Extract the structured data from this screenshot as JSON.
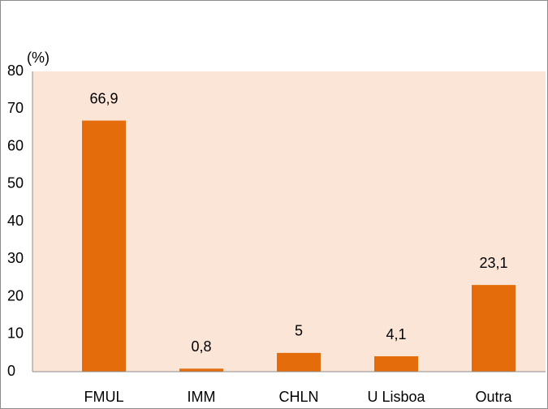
{
  "chart_data": {
    "type": "bar",
    "ylabel": "(%)",
    "categories": [
      "FMUL",
      "IMM",
      "CHLN",
      "U Lisboa",
      "Outra"
    ],
    "values": [
      66.9,
      0.8,
      5,
      4.1,
      23.1
    ],
    "value_labels": [
      "66,9",
      "0,8",
      "5",
      "4,1",
      "23,1"
    ],
    "color": "#e46c0a",
    "background": "#fbe5d6",
    "ylim": [
      0,
      80
    ],
    "yticks": [
      0,
      10,
      20,
      30,
      40,
      50,
      60,
      70,
      80
    ],
    "grid": false
  }
}
